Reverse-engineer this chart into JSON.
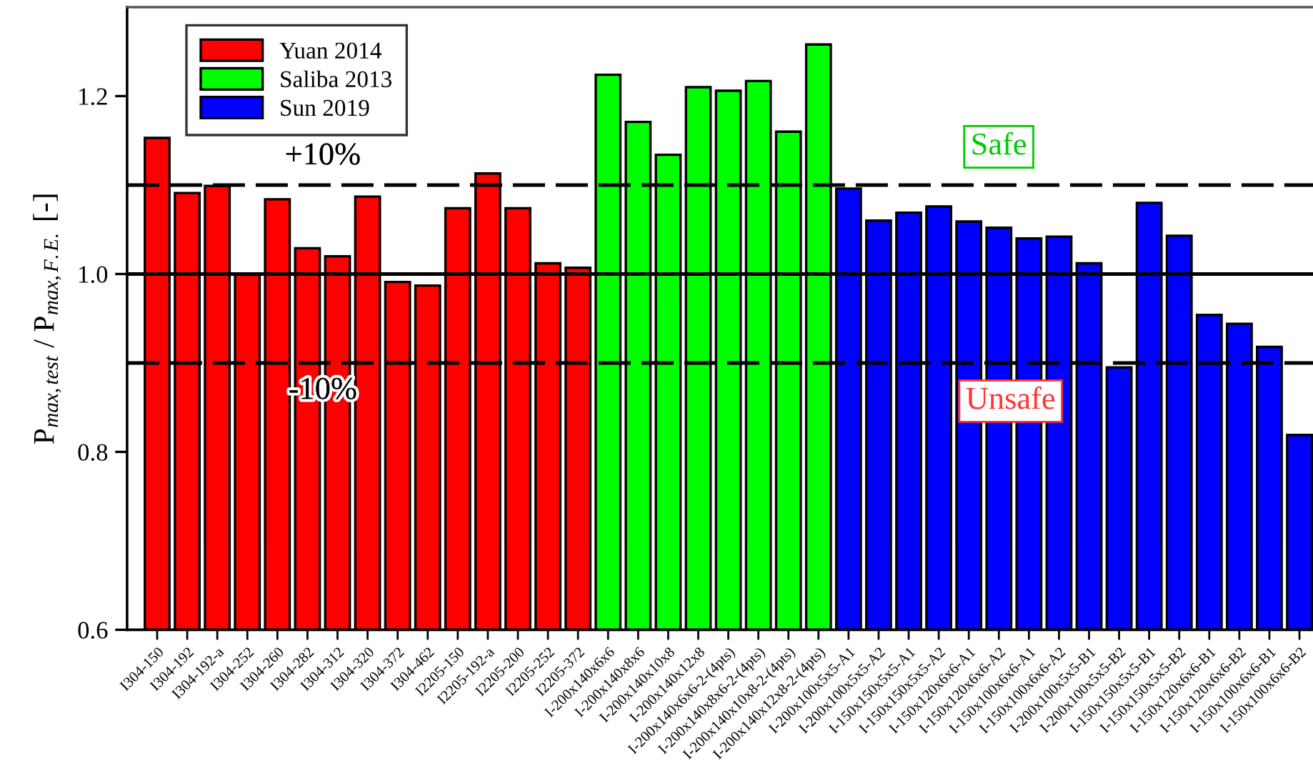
{
  "chart_data": {
    "type": "bar",
    "ylabel": "P$_{max,test}$ / P$_{max,F.E.}$ [-]",
    "categories": [
      "I304-150",
      "I304-192",
      "I304-192-a",
      "I304-252",
      "I304-260",
      "I304-282",
      "I304-312",
      "I304-320",
      "I304-372",
      "I304-462",
      "I2205-150",
      "I2205-192-a",
      "I2205-200",
      "I2205-252",
      "I2205-372",
      "I-200x140x6x6",
      "I-200x140x8x6",
      "I-200x140x10x8",
      "I-200x140x12x8",
      "I-200x140x6x6-2-(4pts)",
      "I-200x140x8x6-2-(4pts)",
      "I-200x140x10x8-2-(4pts)",
      "I-200x140x12x8-2-(4pts)",
      "I-200x100x5x5-A1",
      "I-200x100x5x5-A2",
      "I-150x150x5x5-A1",
      "I-150x150x5x5-A2",
      "I-150x120x6x6-A1",
      "I-150x120x6x6-A2",
      "I-150x100x6x6-A1",
      "I-150x100x6x6-A2",
      "I-200x100x5x5-B1",
      "I-200x100x5x5-B2",
      "I-150x150x5x5-B1",
      "I-150x150x5x5-B2",
      "I-150x120x6x6-B1",
      "I-150x120x6x6-B2",
      "I-150x100x6x6-B1",
      "I-150x100x6x6-B2"
    ],
    "series": [
      {
        "name": "Yuan 2014",
        "color": "#ff0000",
        "values": [
          1.153,
          1.091,
          1.099,
          1.0,
          1.084,
          1.029,
          1.02,
          1.087,
          0.991,
          0.987,
          1.074,
          1.113,
          1.074,
          1.012,
          1.007,
          null,
          null,
          null,
          null,
          null,
          null,
          null,
          null,
          null,
          null,
          null,
          null,
          null,
          null,
          null,
          null,
          null,
          null,
          null,
          null,
          null,
          null,
          null,
          null
        ]
      },
      {
        "name": "Saliba 2013",
        "color": "#00ff00",
        "values": [
          null,
          null,
          null,
          null,
          null,
          null,
          null,
          null,
          null,
          null,
          null,
          null,
          null,
          null,
          null,
          1.224,
          1.171,
          1.134,
          1.21,
          1.206,
          1.217,
          1.16,
          1.258,
          null,
          null,
          null,
          null,
          null,
          null,
          null,
          null,
          null,
          null,
          null,
          null,
          null,
          null,
          null,
          null
        ]
      },
      {
        "name": "Sun 2019",
        "color": "#0000ff",
        "values": [
          null,
          null,
          null,
          null,
          null,
          null,
          null,
          null,
          null,
          null,
          null,
          null,
          null,
          null,
          null,
          null,
          null,
          null,
          null,
          null,
          null,
          null,
          null,
          1.096,
          1.06,
          1.069,
          1.076,
          1.059,
          1.052,
          1.04,
          1.042,
          1.012,
          0.895,
          1.08,
          1.043,
          0.954,
          0.944,
          0.918,
          0.819
        ]
      }
    ],
    "ylim": [
      0.6,
      1.3
    ],
    "yticks": [
      0.6,
      0.8,
      {
        "value": 1.0,
        "label": "1.0"
      },
      1.2
    ],
    "ref_lines": [
      {
        "axis": "y",
        "value": 1.1,
        "line_style": "dashed",
        "color": "#000000"
      },
      {
        "axis": "y",
        "value": 1.0,
        "line_style": "solid",
        "color": "#000000"
      },
      {
        "axis": "y",
        "value": 0.9,
        "line_style": "dashed",
        "color": "#000000"
      }
    ],
    "annotations": [
      {
        "text": "+10%",
        "y": 1.1
      },
      {
        "text": "-10%",
        "y": 0.9
      },
      "Safe",
      "Unsafe"
    ],
    "legend": "top left"
  }
}
